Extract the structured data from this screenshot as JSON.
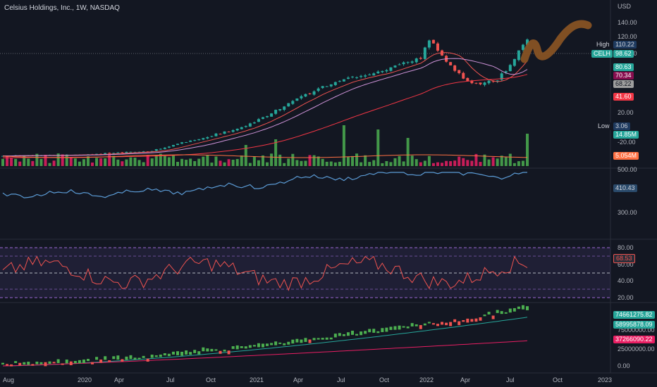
{
  "header": {
    "title": "Celsius Holdings, Inc., 1W, NASDAQ",
    "currency": "USD"
  },
  "price_axis": {
    "ticks": [
      "140.00",
      "120.00",
      "100.00",
      "80.00",
      "60.00",
      "40.00",
      "20.00",
      "-20.00"
    ]
  },
  "badges": {
    "high_label": "High",
    "high_value": "110.22",
    "symbol_label": "CELH",
    "symbol_value": "98.62",
    "ma1": "80.63",
    "ma2": "70.34",
    "ma3": "68.22",
    "ma4": "41.60",
    "low_label": "Low",
    "low_value": "3.06",
    "volume": "14.85M",
    "volume_ma": "5.054M",
    "panel2": "410.43",
    "rsi": "68.53",
    "panel4_a": "74661275.82",
    "panel4_b": "58995878.09",
    "panel4_c": "37266090.22"
  },
  "panel2_axis": {
    "ticks": [
      "500.00",
      "400.00",
      "300.00"
    ]
  },
  "rsi_axis": {
    "ticks": [
      "80.00",
      "60.00",
      "40.00",
      "20.00"
    ]
  },
  "panel4_axis": {
    "ticks": [
      "75000000.00",
      "50000000.00",
      "25000000.00",
      "0.00"
    ]
  },
  "time_axis": {
    "ticks": [
      "Aug",
      "2020",
      "Apr",
      "Jul",
      "Oct",
      "2021",
      "Apr",
      "Jul",
      "Oct",
      "2022",
      "Apr",
      "Jul",
      "Oct",
      "2023"
    ]
  },
  "colors": {
    "bg": "#131722",
    "up": "#26a69a",
    "down": "#ef5350",
    "volUp": "#4caf50",
    "volDown": "#e91e63"
  }
}
